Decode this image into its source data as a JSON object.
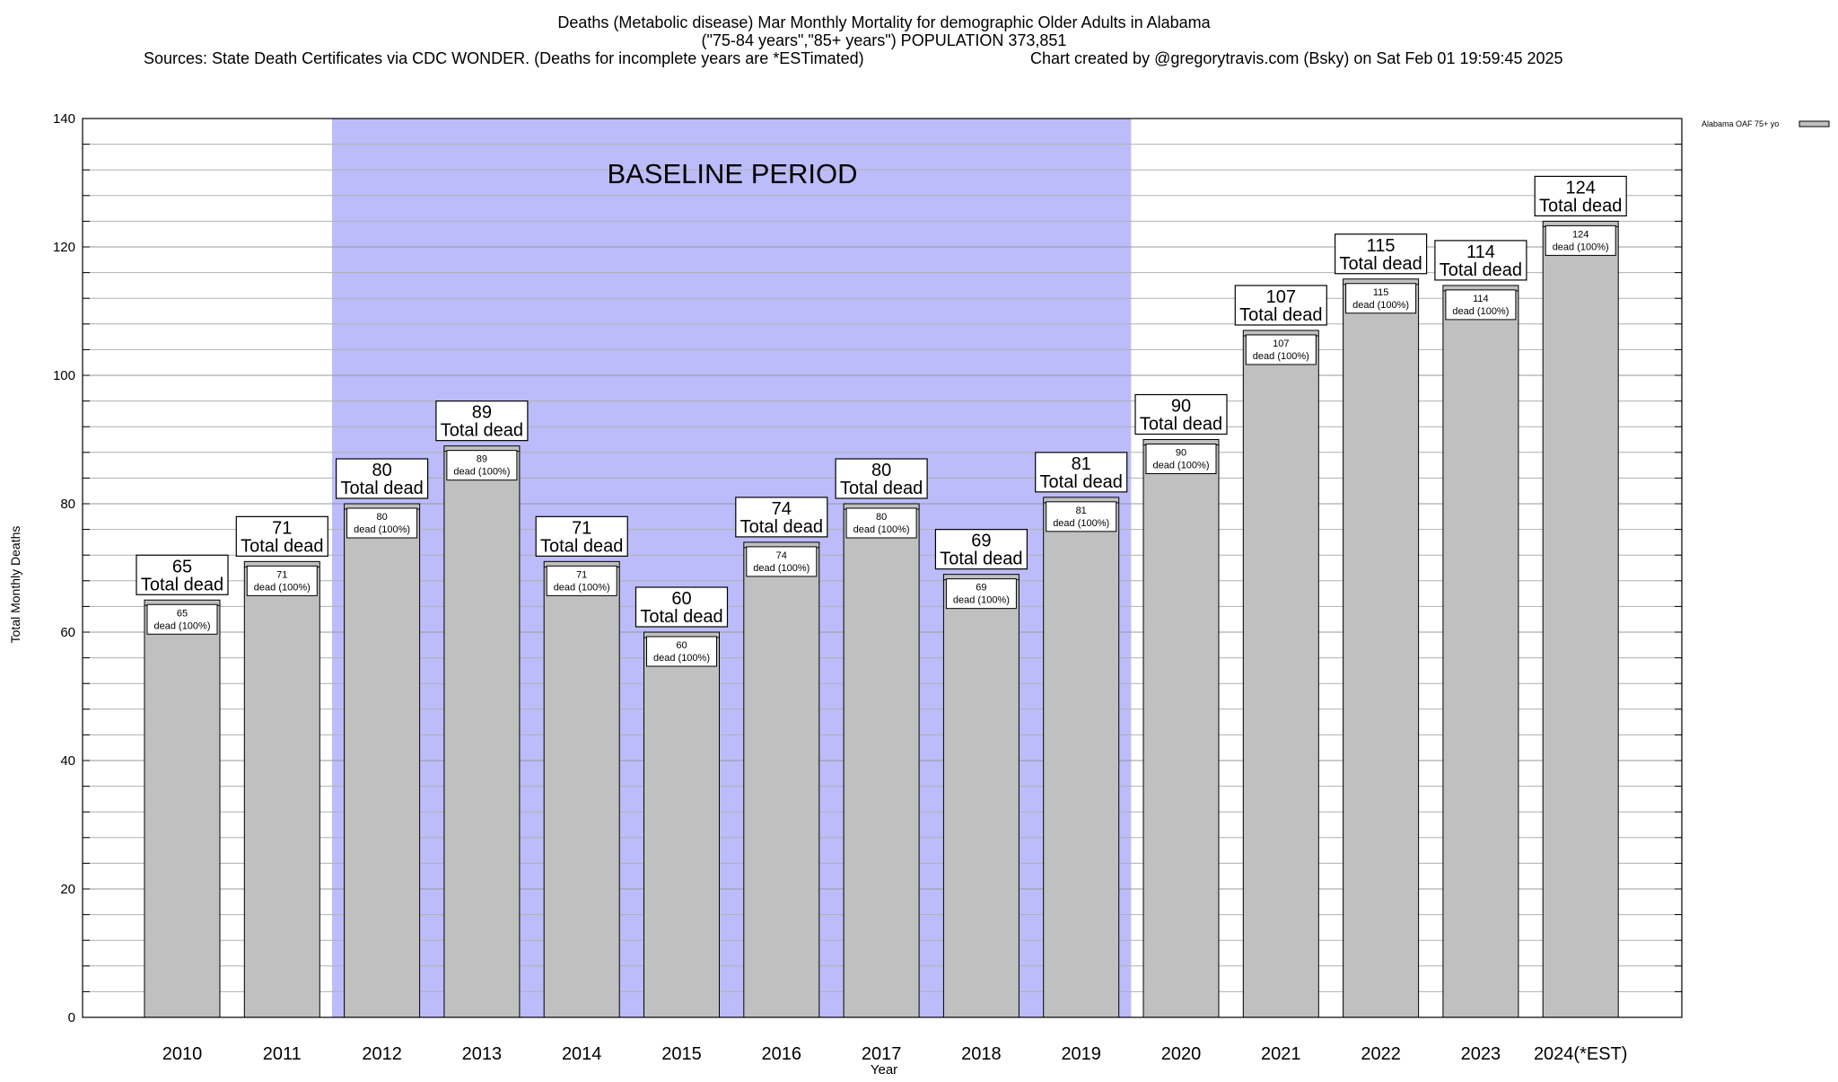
{
  "header": {
    "title_line1": "Deaths (Metabolic disease) Mar Monthly Mortality for demographic Older Adults in Alabama",
    "title_line2": "(\"75-84 years\",\"85+ years\") POPULATION 373,851",
    "sources": "Sources: State Death Certificates via CDC WONDER. (Deaths for incomplete years are *ESTimated)",
    "credit": "Chart created by @gregorytravis.com (Bsky) on Sat Feb 01 19:59:45 2025"
  },
  "colors": {
    "bar_fill": "#c0c0c0",
    "baseline_band": "#bcbcfa",
    "grid": "#b0b0b0"
  },
  "chart_data": {
    "type": "bar",
    "title": "Deaths (Metabolic disease) Mar Monthly Mortality for demographic Older Adults in Alabama",
    "xlabel": "Year",
    "ylabel": "Total Monthly Deaths",
    "ylim": [
      0,
      140
    ],
    "yticks": [
      0,
      20,
      40,
      60,
      80,
      100,
      120,
      140
    ],
    "grid": true,
    "legend": {
      "position": "top-right",
      "entries": [
        "Alabama OAF 75+ yo"
      ]
    },
    "categories": [
      "2010",
      "2011",
      "2012",
      "2013",
      "2014",
      "2015",
      "2016",
      "2017",
      "2018",
      "2019",
      "2020",
      "2021",
      "2022",
      "2023",
      "2024(*EST)"
    ],
    "series": [
      {
        "name": "Alabama OAF 75+ yo",
        "values": [
          65,
          71,
          80,
          89,
          71,
          60,
          74,
          80,
          69,
          81,
          90,
          107,
          115,
          114,
          124
        ]
      }
    ],
    "total_label_suffix": "Total dead",
    "inner_label_suffix": "dead (100%)",
    "baseline_period": {
      "label": "BASELINE PERIOD",
      "start": "2012",
      "end": "2019"
    }
  }
}
